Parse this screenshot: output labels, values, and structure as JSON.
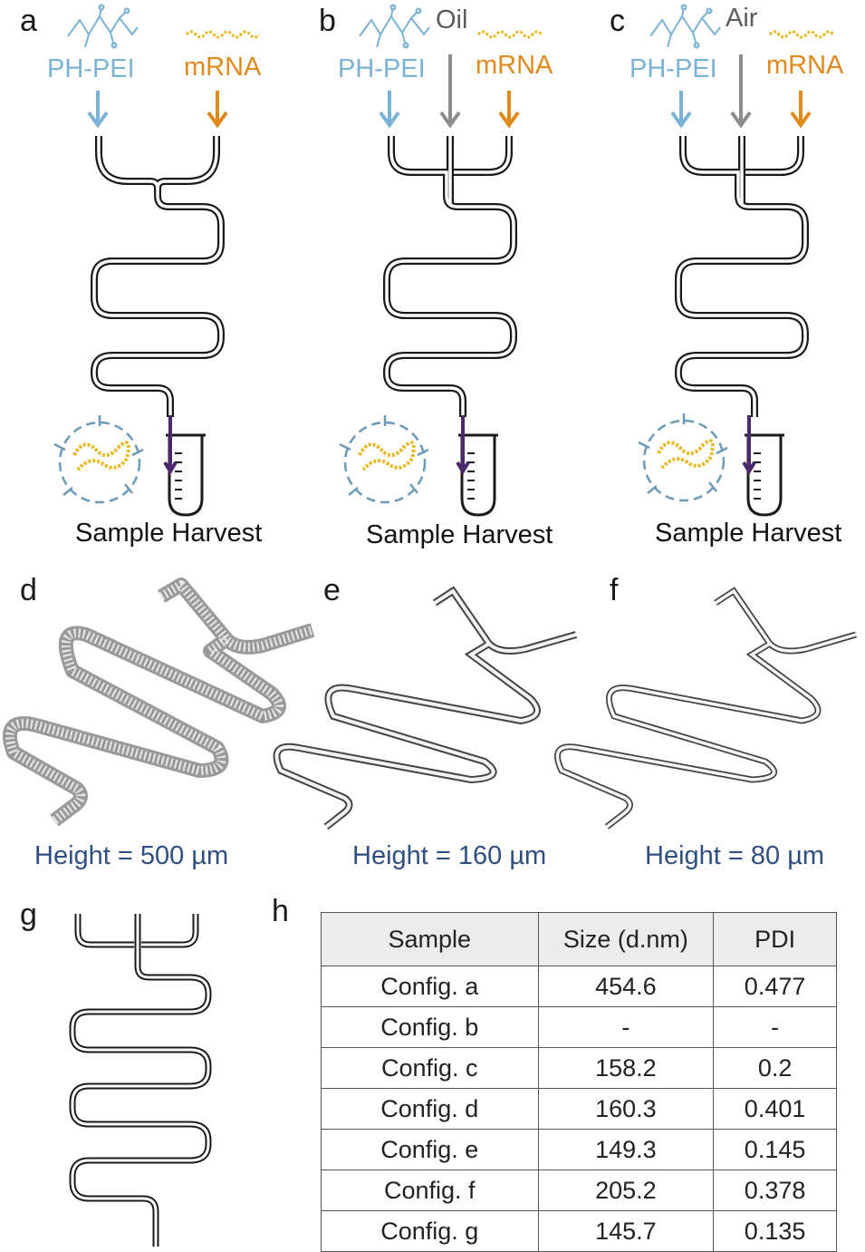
{
  "panels": {
    "a": {
      "letter": "a",
      "pei_label": "PH-PEI",
      "mrna_label": "mRNA",
      "harvest_label": "Sample Harvest"
    },
    "b": {
      "letter": "b",
      "pei_label": "PH-PEI",
      "mrna_label": "mRNA",
      "gas_label": "Oil",
      "harvest_label": "Sample Harvest"
    },
    "c": {
      "letter": "c",
      "pei_label": "PH-PEI",
      "mrna_label": "mRNA",
      "gas_label": "Air",
      "harvest_label": "Sample Harvest"
    },
    "d": {
      "letter": "d",
      "height_label": "Height = 500 µm"
    },
    "e": {
      "letter": "e",
      "height_label": "Height = 160 µm"
    },
    "f": {
      "letter": "f",
      "height_label": "Height = 80 µm"
    },
    "g": {
      "letter": "g"
    },
    "h": {
      "letter": "h"
    }
  },
  "colors": {
    "pei": "#7ab3d3",
    "mrna": "#e08a1e",
    "gas_arrow": "#8c8c8c",
    "channel": "#1a1a1a",
    "tube_fill": "#4a2a6a",
    "height_text": "#2f4f80"
  },
  "table": {
    "headers": [
      "Sample",
      "Size (d.nm)",
      "PDI"
    ],
    "rows": [
      [
        "Config. a",
        "454.6",
        "0.477"
      ],
      [
        "Config. b",
        "-",
        "-"
      ],
      [
        "Config. c",
        "158.2",
        "0.2"
      ],
      [
        "Config. d",
        "160.3",
        "0.401"
      ],
      [
        "Config. e",
        "149.3",
        "0.145"
      ],
      [
        "Config. f",
        "205.2",
        "0.378"
      ],
      [
        "Config. g",
        "145.7",
        "0.135"
      ]
    ]
  }
}
